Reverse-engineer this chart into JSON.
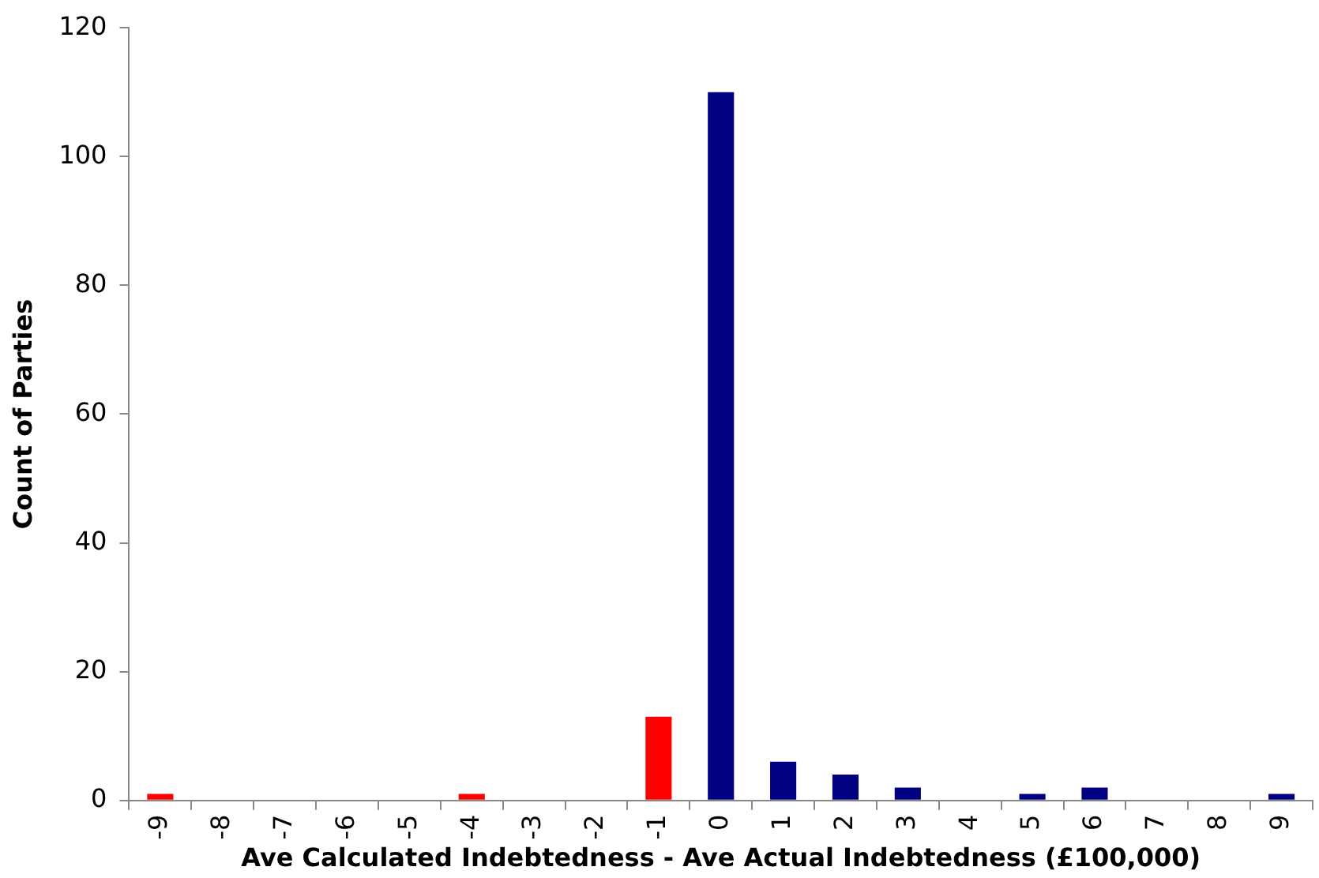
{
  "chart_data": {
    "type": "bar",
    "xlabel": "Ave Calculated Indebtedness - Ave Actual Indebtedness (£100,000)",
    "ylabel": "Count of Parties",
    "categories": [
      "-9",
      "-8",
      "-7",
      "-6",
      "-5",
      "-4",
      "-3",
      "-2",
      "-1",
      "0",
      "1",
      "2",
      "3",
      "4",
      "5",
      "6",
      "7",
      "8",
      "9"
    ],
    "values": [
      1,
      0,
      0,
      0,
      0,
      1,
      0,
      0,
      13,
      110,
      6,
      4,
      2,
      0,
      1,
      2,
      0,
      0,
      1
    ],
    "colors": [
      "#ff0000",
      "#000080",
      "#000080",
      "#000080",
      "#000080",
      "#ff0000",
      "#000080",
      "#000080",
      "#ff0000",
      "#000080",
      "#000080",
      "#000080",
      "#000080",
      "#000080",
      "#000080",
      "#000080",
      "#000080",
      "#000080",
      "#000080"
    ],
    "ylim": [
      0,
      120
    ],
    "yticks": [
      0,
      20,
      40,
      60,
      80,
      100,
      120
    ],
    "grid": false,
    "legend": false
  }
}
